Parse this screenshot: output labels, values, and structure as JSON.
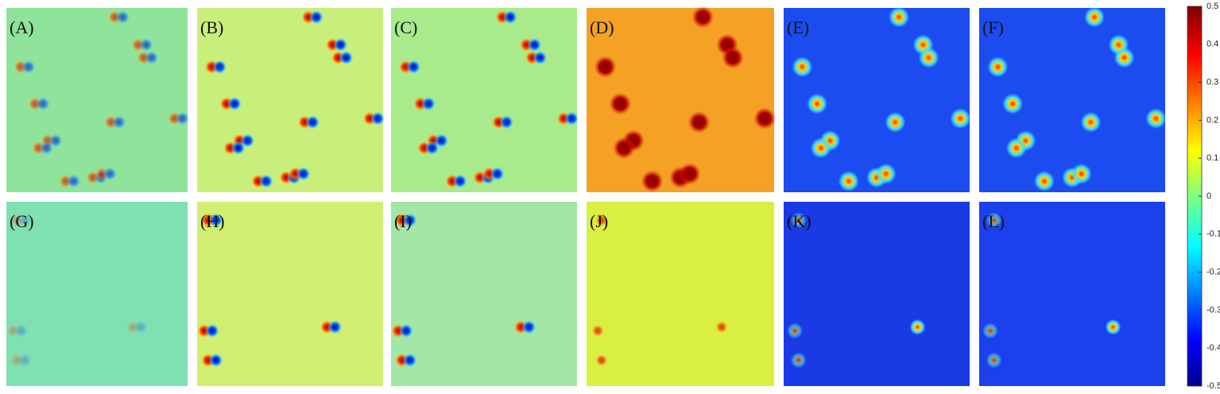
{
  "panels": [
    {
      "label": "(A)"
    },
    {
      "label": "(B)"
    },
    {
      "label": "(C)"
    },
    {
      "label": "(D)"
    },
    {
      "label": "(E)"
    },
    {
      "label": "(F)"
    },
    {
      "label": "(G)"
    },
    {
      "label": "(H)"
    },
    {
      "label": "(I)"
    },
    {
      "label": "(J)"
    },
    {
      "label": "(K)"
    },
    {
      "label": "(L)"
    }
  ],
  "colorbar": {
    "lim": [
      -0.5,
      0.5
    ],
    "ticks": [
      0.5,
      0.4,
      0.3,
      0.2,
      0.1,
      0,
      -0.1,
      -0.2,
      -0.3,
      -0.4,
      -0.5
    ]
  }
}
